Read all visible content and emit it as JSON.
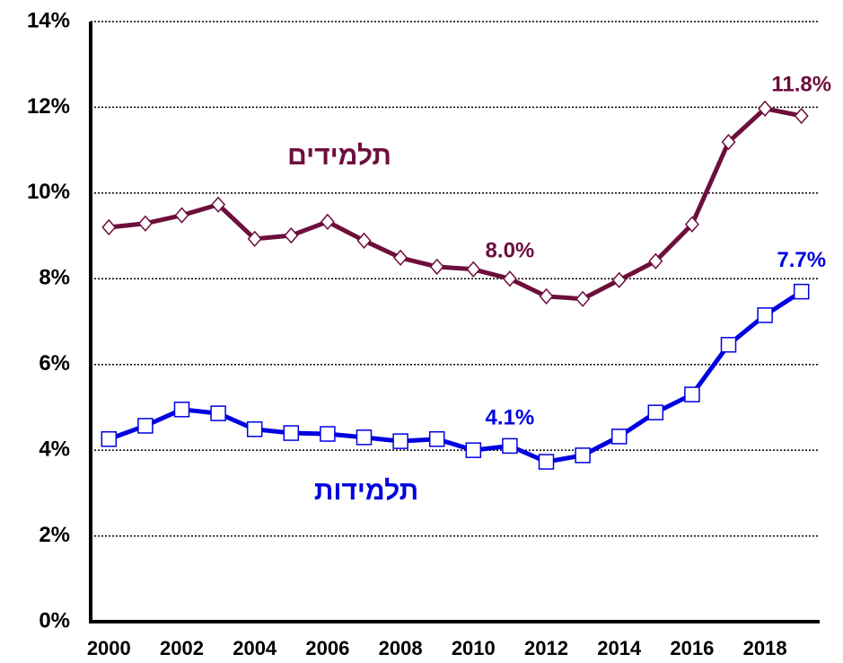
{
  "chart_data": {
    "type": "line",
    "x": [
      2000,
      2001,
      2002,
      2003,
      2004,
      2005,
      2006,
      2007,
      2008,
      2009,
      2010,
      2011,
      2012,
      2013,
      2014,
      2015,
      2016,
      2017,
      2018,
      2019
    ],
    "series": [
      {
        "name": "תלמידים",
        "color": "#6d0e3d",
        "marker": "diamond",
        "values": [
          9.2,
          9.29,
          9.48,
          9.73,
          8.93,
          9.01,
          9.33,
          8.89,
          8.49,
          8.28,
          8.22,
          8.0,
          7.59,
          7.53,
          7.97,
          8.41,
          9.27,
          11.19,
          11.97,
          11.8
        ],
        "value_labels": [
          null,
          null,
          null,
          null,
          null,
          null,
          null,
          null,
          null,
          null,
          null,
          "8.0%",
          null,
          null,
          null,
          null,
          null,
          null,
          null,
          "11.8%"
        ]
      },
      {
        "name": "תלמידות",
        "color": "#0000e0",
        "marker": "square",
        "values": [
          4.26,
          4.57,
          4.95,
          4.86,
          4.49,
          4.4,
          4.38,
          4.3,
          4.21,
          4.26,
          4.0,
          4.1,
          3.73,
          3.88,
          4.32,
          4.88,
          5.3,
          6.46,
          7.15,
          7.7
        ],
        "value_labels": [
          null,
          null,
          null,
          null,
          null,
          null,
          null,
          null,
          null,
          null,
          null,
          "4.1%",
          null,
          null,
          null,
          null,
          null,
          null,
          null,
          "7.7%"
        ]
      }
    ],
    "xlim": [
      1999.5,
      2019.5
    ],
    "xticks": [
      2000,
      2002,
      2004,
      2006,
      2008,
      2010,
      2012,
      2014,
      2016,
      2018
    ],
    "ylim": [
      0,
      14
    ],
    "yticks": [
      {
        "value": 0,
        "label": "0%"
      },
      {
        "value": 2,
        "label": "2%"
      },
      {
        "value": 4,
        "label": "4%"
      },
      {
        "value": 6,
        "label": "6%"
      },
      {
        "value": 8,
        "label": "8%"
      },
      {
        "value": 10,
        "label": "10%"
      },
      {
        "value": 12,
        "label": "12%"
      },
      {
        "value": 14,
        "label": "14%"
      }
    ],
    "grid": true
  }
}
